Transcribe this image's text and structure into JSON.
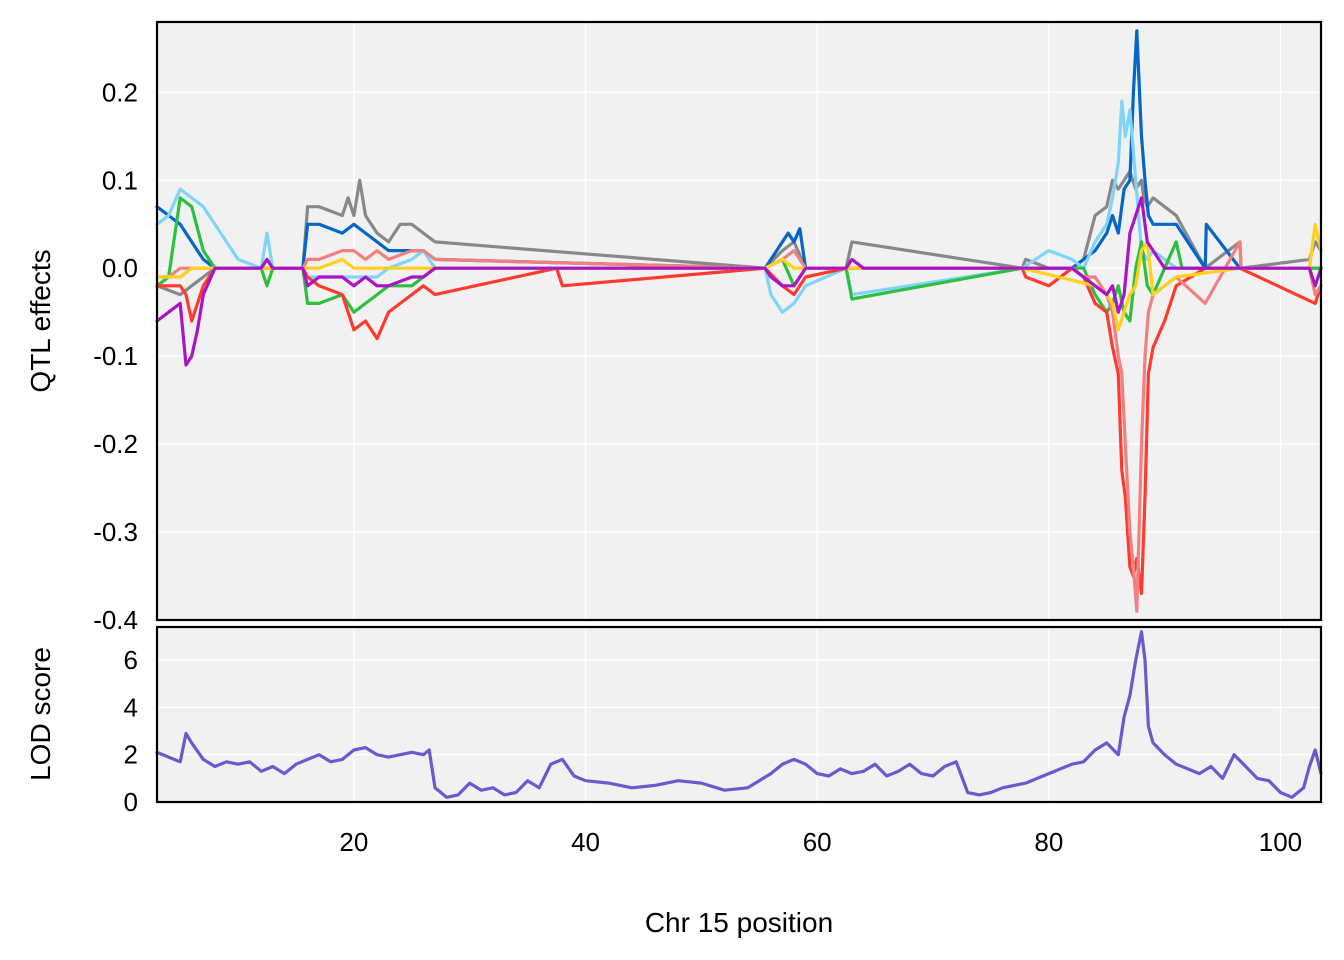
{
  "chart_data": [
    {
      "type": "line",
      "panel": "top",
      "ylabel": "QTL effects",
      "xlim": [
        3,
        103.5
      ],
      "ylim": [
        -0.4,
        0.28
      ],
      "xticks": [
        20,
        40,
        60,
        80,
        100
      ],
      "yticks": [
        0.2,
        0.1,
        0.0,
        -0.1,
        -0.2,
        -0.3,
        -0.4
      ],
      "ytick_labels": [
        "0.2",
        "0.1",
        "0.0",
        "-0.1",
        "-0.2",
        "-0.3",
        "-0.4"
      ],
      "grid": true,
      "series": [
        {
          "color": "#888888",
          "x": [
            3,
            5,
            6,
            7,
            8,
            12,
            15.6,
            16,
            17,
            19,
            19.5,
            20,
            20.5,
            21,
            22,
            23,
            24,
            25,
            26,
            27,
            55.5,
            57,
            58,
            59,
            62.5,
            63,
            77.7,
            78,
            80,
            82,
            83,
            84,
            85,
            85.5,
            86,
            86.5,
            87,
            87.5,
            88,
            88.2,
            88.5,
            89,
            90,
            91,
            93.5,
            96.5,
            96.6,
            102.5,
            103,
            103.5
          ],
          "y": [
            -0.02,
            -0.03,
            -0.02,
            -0.01,
            0,
            0,
            0,
            0.07,
            0.07,
            0.06,
            0.08,
            0.06,
            0.1,
            0.06,
            0.04,
            0.03,
            0.05,
            0.05,
            0.04,
            0.03,
            0,
            0.02,
            0.03,
            0,
            0,
            0.03,
            0,
            0.01,
            0,
            0,
            0.01,
            0.06,
            0.07,
            0.1,
            0.09,
            0.1,
            0.11,
            0.09,
            0.1,
            0.08,
            0.07,
            0.08,
            0.07,
            0.06,
            0,
            0.03,
            0,
            0.01,
            0.03,
            0.02
          ]
        },
        {
          "color": "#0565c8",
          "x": [
            3,
            4,
            5,
            6,
            7,
            8,
            12,
            15.6,
            16,
            17,
            19,
            20,
            21,
            22,
            23,
            25,
            26,
            27,
            55.5,
            57,
            57.5,
            58,
            58.5,
            59,
            62.5,
            77.7,
            80,
            82,
            83,
            84,
            85,
            85.5,
            86,
            86.5,
            87,
            87.3,
            87.6,
            88,
            88.3,
            88.6,
            89,
            90,
            91,
            93.5,
            93.6,
            96.5,
            103.5
          ],
          "y": [
            0.07,
            0.06,
            0.05,
            0.03,
            0.01,
            0,
            0,
            0,
            0.05,
            0.05,
            0.04,
            0.05,
            0.04,
            0.03,
            0.02,
            0.02,
            0.02,
            0.01,
            0,
            0.03,
            0.04,
            0.03,
            0.045,
            0,
            0,
            0,
            0,
            0,
            0.01,
            0.02,
            0.04,
            0.06,
            0.04,
            0.09,
            0.1,
            0.2,
            0.27,
            0.15,
            0.1,
            0.06,
            0.05,
            0.05,
            0.05,
            0,
            0.05,
            0,
            0
          ]
        },
        {
          "color": "#7fd4fa",
          "x": [
            3,
            4,
            5,
            6,
            7,
            8,
            9,
            10,
            12,
            12.5,
            13,
            15.6,
            16,
            17,
            19,
            20,
            21,
            22,
            23,
            25,
            26,
            27,
            55.5,
            56,
            57,
            58,
            59,
            62.5,
            63,
            77.7,
            80,
            82,
            83,
            84,
            85,
            85.5,
            86,
            86.3,
            86.6,
            87,
            87.5,
            88,
            88.5,
            89,
            90,
            91,
            93.5,
            96.5,
            103.5
          ],
          "y": [
            0.05,
            0.06,
            0.09,
            0.08,
            0.07,
            0.05,
            0.03,
            0.01,
            0,
            0.04,
            0,
            0,
            -0.01,
            -0.01,
            -0.01,
            -0.01,
            -0.01,
            -0.01,
            0,
            0.01,
            0.02,
            0,
            0,
            -0.03,
            -0.05,
            -0.04,
            -0.02,
            0,
            -0.03,
            0,
            0.02,
            0.01,
            0,
            0.03,
            0.05,
            0.08,
            0.12,
            0.19,
            0.15,
            0.18,
            0.1,
            0.02,
            0.01,
            0.02,
            0.01,
            0,
            0,
            0,
            0
          ]
        },
        {
          "color": "#2dc040",
          "x": [
            3,
            4,
            5,
            6,
            7,
            8,
            12,
            12.5,
            13,
            15.6,
            16,
            17,
            19,
            20,
            21,
            22,
            23,
            25,
            26,
            27,
            55.5,
            57,
            58,
            59,
            62.5,
            63,
            77.7,
            80,
            82,
            83,
            84,
            85,
            85.5,
            86,
            86.5,
            87,
            87.5,
            88,
            88.5,
            89,
            90,
            91,
            91.5,
            93.5,
            96.5,
            103.5
          ],
          "y": [
            -0.02,
            -0.01,
            0.08,
            0.07,
            0.02,
            0,
            0,
            -0.02,
            0,
            0,
            -0.04,
            -0.04,
            -0.03,
            -0.05,
            -0.04,
            -0.03,
            -0.02,
            -0.02,
            -0.01,
            0,
            0,
            0.01,
            -0.02,
            0,
            0,
            -0.035,
            0,
            0,
            0,
            0,
            -0.03,
            -0.05,
            -0.04,
            -0.02,
            -0.05,
            -0.06,
            0,
            0.03,
            -0.02,
            -0.03,
            0,
            0.03,
            0,
            0,
            0,
            0
          ]
        },
        {
          "color": "#ff3b30",
          "x": [
            3,
            4,
            5,
            5.5,
            6,
            7,
            8,
            12,
            15.6,
            16,
            17,
            19,
            20,
            21,
            22,
            23,
            24,
            25,
            26,
            27,
            37.5,
            38,
            55.5,
            57,
            58,
            59,
            62.5,
            77.7,
            78,
            80,
            82,
            83,
            84,
            85,
            85.5,
            86,
            86.3,
            86.6,
            87,
            87.3,
            87.6,
            88,
            88.3,
            88.6,
            89,
            90,
            91,
            93.5,
            96.5,
            103,
            103.5
          ],
          "y": [
            -0.02,
            -0.02,
            -0.02,
            -0.03,
            -0.06,
            -0.02,
            0,
            0,
            0,
            -0.01,
            -0.02,
            -0.03,
            -0.07,
            -0.06,
            -0.08,
            -0.05,
            -0.04,
            -0.03,
            -0.02,
            -0.03,
            0,
            -0.02,
            0,
            -0.02,
            -0.03,
            -0.01,
            0,
            0,
            -0.01,
            -0.02,
            0,
            -0.01,
            -0.04,
            -0.05,
            -0.09,
            -0.12,
            -0.23,
            -0.26,
            -0.34,
            -0.35,
            -0.33,
            -0.37,
            -0.26,
            -0.12,
            -0.09,
            -0.06,
            -0.02,
            0,
            0,
            -0.04,
            -0.02
          ]
        },
        {
          "color": "#f28080",
          "x": [
            3,
            4,
            5,
            6,
            7,
            8,
            12,
            15.6,
            16,
            17,
            19,
            20,
            21,
            22,
            23,
            25,
            26,
            27,
            55.5,
            57,
            58,
            59,
            62.5,
            77.7,
            80,
            82,
            83,
            84,
            85,
            85.5,
            86,
            86.3,
            86.6,
            87,
            87.3,
            87.6,
            88,
            88.3,
            88.6,
            89,
            90,
            91,
            93.5,
            96.5,
            96.6,
            102.5,
            103,
            103.5
          ],
          "y": [
            -0.01,
            -0.01,
            0,
            0,
            0,
            0,
            0,
            0,
            0.01,
            0.01,
            0.02,
            0.02,
            0.01,
            0.02,
            0.01,
            0.02,
            0.02,
            0.01,
            0,
            0.01,
            0.02,
            0,
            0,
            0,
            0,
            0,
            -0.01,
            -0.01,
            -0.03,
            -0.05,
            -0.1,
            -0.12,
            -0.2,
            -0.3,
            -0.34,
            -0.39,
            -0.2,
            -0.1,
            -0.05,
            -0.03,
            -0.02,
            -0.01,
            -0.04,
            0.03,
            0,
            0,
            -0.03,
            -0.02
          ]
        },
        {
          "color": "#ffd11a",
          "x": [
            3,
            4,
            5,
            6,
            7,
            8,
            12,
            15.6,
            16,
            17,
            19,
            20,
            21,
            23,
            25,
            27,
            55.5,
            57,
            58,
            59,
            77.7,
            84,
            85,
            85.5,
            86,
            86.5,
            87,
            87.5,
            88,
            88.5,
            89,
            90,
            91,
            96.5,
            102.5,
            103,
            103.5
          ],
          "y": [
            -0.01,
            -0.01,
            -0.01,
            0,
            0,
            0,
            0,
            0,
            0,
            0,
            0.01,
            0,
            0,
            0,
            0,
            0,
            0,
            0.01,
            0,
            0,
            0,
            -0.02,
            -0.03,
            -0.04,
            -0.07,
            -0.05,
            -0.03,
            -0.02,
            0.02,
            0.03,
            -0.03,
            -0.02,
            -0.01,
            0,
            0,
            0.05,
            0.02
          ]
        },
        {
          "color": "#aa14c8",
          "x": [
            3,
            4,
            5,
            5.5,
            6,
            6.5,
            7,
            8,
            12,
            12.5,
            13,
            15.6,
            16,
            17,
            19,
            20,
            21,
            22,
            23,
            25,
            26,
            27,
            55.5,
            56,
            57,
            58,
            59,
            62.5,
            63,
            64,
            77.7,
            82,
            83,
            84,
            85,
            85.5,
            86,
            86.5,
            87,
            87.5,
            88,
            88.5,
            89,
            90,
            91,
            93.5,
            96.5,
            102.5,
            103,
            103.5
          ],
          "y": [
            -0.06,
            -0.05,
            -0.04,
            -0.11,
            -0.1,
            -0.07,
            -0.03,
            0,
            0,
            0.01,
            0,
            0,
            -0.02,
            -0.01,
            -0.01,
            -0.02,
            -0.01,
            -0.02,
            -0.02,
            -0.01,
            -0.01,
            0,
            0,
            -0.01,
            -0.02,
            -0.02,
            0,
            0,
            0.01,
            0,
            0,
            0,
            -0.01,
            -0.02,
            -0.03,
            -0.02,
            -0.05,
            -0.03,
            0.04,
            0.06,
            0.08,
            0.03,
            0.02,
            0,
            0,
            0,
            0,
            0,
            -0.02,
            0
          ]
        }
      ]
    },
    {
      "type": "line",
      "panel": "bottom",
      "xlabel": "Chr 15 position",
      "ylabel": "LOD score",
      "xlim": [
        3,
        103.5
      ],
      "ylim": [
        0,
        7.4
      ],
      "xticks": [
        20,
        40,
        60,
        80,
        100
      ],
      "xtick_labels": [
        "20",
        "40",
        "60",
        "80",
        "100"
      ],
      "yticks": [
        0,
        2,
        4,
        6
      ],
      "ytick_labels": [
        "0",
        "2",
        "4",
        "6"
      ],
      "grid": true,
      "series": [
        {
          "color": "#6a5acd",
          "x": [
            3,
            4,
            5,
            5.5,
            6,
            7,
            8,
            9,
            10,
            11,
            12,
            13,
            14,
            15,
            16,
            17,
            18,
            19,
            20,
            21,
            22,
            23,
            24,
            25,
            26,
            26.5,
            27,
            28,
            29,
            30,
            31,
            32,
            33,
            34,
            35,
            36,
            37,
            38,
            39,
            40,
            42,
            44,
            46,
            48,
            50,
            52,
            54,
            55,
            56,
            57,
            58,
            59,
            60,
            61,
            62,
            63,
            64,
            65,
            66,
            67,
            68,
            69,
            70,
            71,
            72,
            73,
            74,
            75,
            76,
            77,
            78,
            79,
            80,
            81,
            82,
            83,
            84,
            85,
            86,
            86.5,
            87,
            87.5,
            88,
            88.3,
            88.6,
            89,
            90,
            91,
            92,
            93,
            94,
            95,
            96,
            97,
            98,
            99,
            100,
            101,
            102,
            102.5,
            103,
            103.5
          ],
          "y": [
            2.1,
            1.9,
            1.7,
            2.9,
            2.5,
            1.8,
            1.5,
            1.7,
            1.6,
            1.7,
            1.3,
            1.5,
            1.2,
            1.6,
            1.8,
            2.0,
            1.7,
            1.8,
            2.2,
            2.3,
            2.0,
            1.9,
            2.0,
            2.1,
            2.0,
            2.2,
            0.6,
            0.2,
            0.3,
            0.8,
            0.5,
            0.6,
            0.3,
            0.4,
            0.9,
            0.6,
            1.6,
            1.8,
            1.1,
            0.9,
            0.8,
            0.6,
            0.7,
            0.9,
            0.8,
            0.5,
            0.6,
            0.9,
            1.2,
            1.6,
            1.8,
            1.6,
            1.2,
            1.1,
            1.4,
            1.2,
            1.3,
            1.6,
            1.1,
            1.3,
            1.6,
            1.2,
            1.1,
            1.5,
            1.7,
            0.4,
            0.3,
            0.4,
            0.6,
            0.7,
            0.8,
            1.0,
            1.2,
            1.4,
            1.6,
            1.7,
            2.2,
            2.5,
            2.0,
            3.6,
            4.5,
            6.0,
            7.2,
            6.0,
            3.2,
            2.5,
            2.0,
            1.6,
            1.4,
            1.2,
            1.5,
            1.0,
            2.0,
            1.5,
            1.0,
            0.9,
            0.4,
            0.2,
            0.6,
            1.5,
            2.2,
            1.2
          ]
        }
      ]
    }
  ]
}
